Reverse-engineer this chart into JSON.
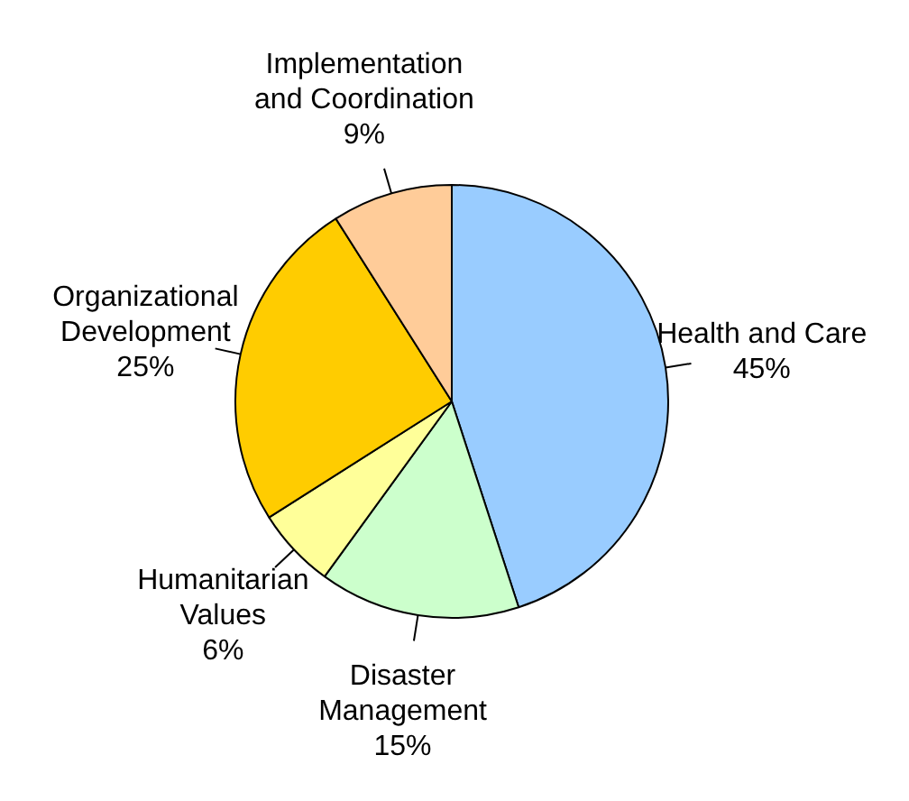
{
  "chart_data": {
    "type": "pie",
    "categories": [
      "Health and Care",
      "Disaster Management",
      "Humanitarian Values",
      "Organizational Development",
      "Implementation and Coordination"
    ],
    "values": [
      45,
      15,
      6,
      25,
      9
    ],
    "colors": [
      "#99ccff",
      "#ccffcc",
      "#ffff99",
      "#ffcc00",
      "#ffcc99"
    ],
    "value_labels": [
      "45%",
      "15%",
      "6%",
      "25%",
      "9%"
    ]
  }
}
